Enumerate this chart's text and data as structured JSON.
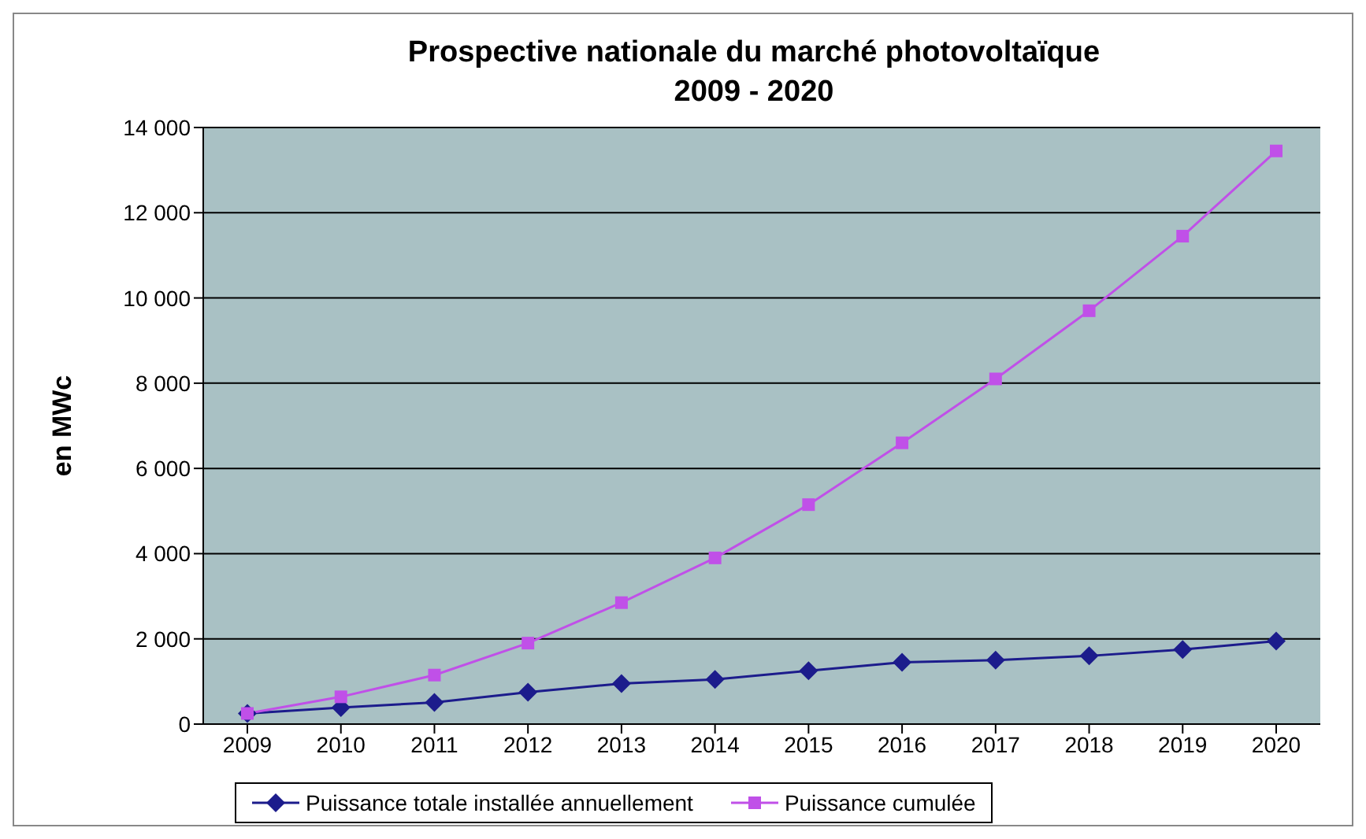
{
  "chart_data": {
    "type": "line",
    "title": "Prospective nationale du marché photovoltaïque\n2009 - 2020",
    "ylabel": "en MWc",
    "categories": [
      "2009",
      "2010",
      "2011",
      "2012",
      "2013",
      "2014",
      "2015",
      "2016",
      "2017",
      "2018",
      "2019",
      "2020"
    ],
    "series": [
      {
        "name": "Puissance totale installée annuellement",
        "color": "#1c1c8c",
        "marker": "diamond",
        "values": [
          250,
          390,
          510,
          750,
          950,
          1050,
          1250,
          1450,
          1500,
          1600,
          1750,
          1950
        ]
      },
      {
        "name": "Puissance cumulée",
        "color": "#c050e8",
        "marker": "square",
        "values": [
          250,
          640,
          1150,
          1900,
          2850,
          3900,
          5150,
          6600,
          8100,
          9700,
          11450,
          13450
        ]
      }
    ],
    "ylim": [
      0,
      14000
    ],
    "yticks": [
      0,
      {
        "value": 2000,
        "label": "2 000"
      },
      {
        "value": 4000,
        "label": "4 000"
      },
      {
        "value": 6000,
        "label": "6 000"
      },
      {
        "value": 8000,
        "label": "8 000"
      },
      {
        "value": 10000,
        "label": "10 000"
      },
      {
        "value": 12000,
        "label": "12 000"
      },
      {
        "value": 14000,
        "label": "14 000"
      }
    ],
    "grid": "y",
    "legend": "bottom",
    "line_style": "solid"
  }
}
